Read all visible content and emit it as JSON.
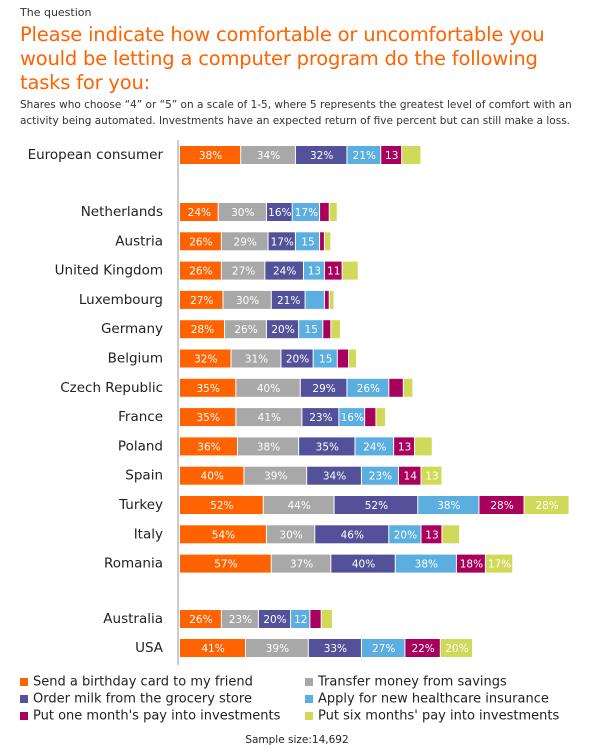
{
  "chart_data": {
    "type": "bar",
    "orientation": "horizontal",
    "stacked": true,
    "kicker": "The question",
    "title": "Please indicate how comfortable or uncomfortable you would be letting a computer program do the following tasks for you:",
    "subtitle": "Shares who choose “4” or “5” on a scale of 1-5, where 5 represents the greatest level of comfort with an activity being automated. Investments have an expected return of five percent but can still make a loss.",
    "footnote": "Sample size:14,692",
    "categories": [
      "European consumer",
      "Netherlands",
      "Austria",
      "United Kingdom",
      "Luxembourg",
      "Germany",
      "Belgium",
      "Czech Republic",
      "France",
      "Poland",
      "Spain",
      "Turkey",
      "Italy",
      "Romania",
      "Australia",
      "USA"
    ],
    "series": [
      {
        "name": "Send a birthday card to my friend",
        "color": "#ff6200",
        "values": [
          38,
          24,
          26,
          26,
          27,
          28,
          32,
          35,
          35,
          36,
          40,
          52,
          54,
          57,
          26,
          41
        ],
        "value_labels": [
          "38%",
          "24%",
          "26%",
          "26%",
          "27%",
          "28%",
          "32%",
          "35%",
          "35%",
          "36%",
          "40%",
          "52%",
          "54%",
          "57%",
          "26%",
          "41%"
        ]
      },
      {
        "name": "Transfer money from savings",
        "color": "#a8a8a8",
        "values": [
          34,
          30,
          29,
          27,
          30,
          26,
          31,
          40,
          41,
          38,
          39,
          44,
          30,
          37,
          23,
          39
        ],
        "value_labels": [
          "34%",
          "30%",
          "29%",
          "27%",
          "30%",
          "26%",
          "31%",
          "40%",
          "41%",
          "38%",
          "39%",
          "44%",
          "30%",
          "37%",
          "23%",
          "39%"
        ]
      },
      {
        "name": "Order milk from the grocery store",
        "color": "#525199",
        "values": [
          32,
          16,
          17,
          24,
          21,
          20,
          20,
          29,
          23,
          35,
          34,
          52,
          46,
          40,
          20,
          33
        ],
        "value_labels": [
          "32%",
          "16%",
          "17%",
          "24%",
          "21%",
          "20%",
          "20%",
          "29%",
          "23%",
          "35%",
          "34%",
          "52%",
          "46%",
          "40%",
          "20%",
          "33%"
        ]
      },
      {
        "name": "Apply for new healthcare insurance",
        "color": "#5aaee0",
        "values": [
          21,
          17,
          15,
          13,
          12,
          15,
          15,
          26,
          16,
          24,
          23,
          38,
          20,
          38,
          12,
          27
        ],
        "value_labels": [
          "21%",
          "17%",
          "15",
          "13",
          null,
          "15",
          "15",
          "26%",
          "16%",
          "24%",
          "23%",
          "38%",
          "20%",
          "38%",
          "12",
          "27%"
        ]
      },
      {
        "name": "Put one month's pay into investments",
        "color": "#a8005c",
        "values": [
          13,
          6,
          3,
          11,
          3,
          5,
          7,
          9,
          7,
          13,
          14,
          28,
          13,
          18,
          7,
          22
        ],
        "value_labels": [
          "13",
          null,
          null,
          "11",
          null,
          null,
          null,
          null,
          null,
          "13",
          "14",
          "28%",
          "13",
          "18%",
          null,
          "22%"
        ]
      },
      {
        "name": "Put six months' pay into investments",
        "color": "#d0d958",
        "values": [
          12,
          5,
          4,
          10,
          3,
          6,
          5,
          6,
          6,
          11,
          13,
          28,
          11,
          17,
          7,
          20
        ],
        "value_labels": [
          null,
          null,
          null,
          null,
          null,
          null,
          null,
          null,
          null,
          null,
          "13",
          "28%",
          null,
          "17%",
          null,
          "20%"
        ]
      }
    ]
  }
}
